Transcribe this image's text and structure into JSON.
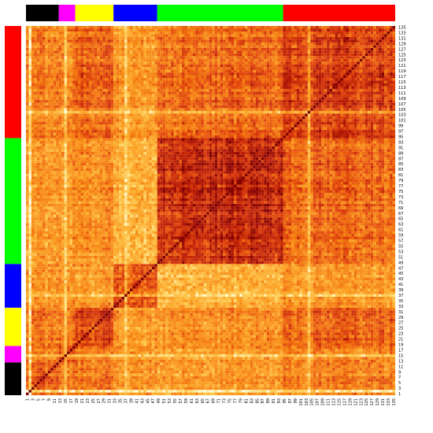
{
  "chart_data": {
    "type": "heatmap",
    "n": 135,
    "rows_bottom_to_top": true,
    "x_tick_labels": [
      "1",
      "3",
      "5",
      "7",
      "9",
      "11",
      "13",
      "15",
      "17",
      "19",
      "21",
      "23",
      "25",
      "27",
      "29",
      "31",
      "33",
      "35",
      "37",
      "39",
      "41",
      "43",
      "45",
      "47",
      "49",
      "51",
      "53",
      "55",
      "57",
      "59",
      "61",
      "63",
      "65",
      "67",
      "69",
      "71",
      "73",
      "75",
      "77",
      "79",
      "81",
      "83",
      "85",
      "87",
      "89",
      "91",
      "93",
      "95",
      "97",
      "99",
      "101",
      "103",
      "105",
      "107",
      "109",
      "111",
      "113",
      "115",
      "117",
      "119",
      "121",
      "123",
      "125",
      "127",
      "129",
      "131",
      "133",
      "135"
    ],
    "y_tick_labels": [
      "1",
      "3",
      "5",
      "7",
      "9",
      "11",
      "13",
      "15",
      "17",
      "19",
      "21",
      "23",
      "25",
      "27",
      "29",
      "31",
      "33",
      "35",
      "37",
      "39",
      "41",
      "43",
      "45",
      "47",
      "49",
      "51",
      "53",
      "55",
      "57",
      "59",
      "61",
      "63",
      "65",
      "67",
      "69",
      "71",
      "73",
      "75",
      "77",
      "79",
      "81",
      "83",
      "85",
      "87",
      "89",
      "91",
      "93",
      "95",
      "97",
      "99",
      "101",
      "103",
      "105",
      "107",
      "109",
      "111",
      "113",
      "115",
      "117",
      "119",
      "121",
      "123",
      "125",
      "127",
      "129",
      "131",
      "133",
      "135"
    ],
    "groups": [
      {
        "color": "#000000",
        "start": 1,
        "end": 12
      },
      {
        "color": "#ff00ff",
        "start": 13,
        "end": 18
      },
      {
        "color": "#ffff00",
        "start": 19,
        "end": 32
      },
      {
        "color": "#0000ff",
        "start": 33,
        "end": 48
      },
      {
        "color": "#00ff00",
        "start": 49,
        "end": 94
      },
      {
        "color": "#ff0000",
        "start": 95,
        "end": 135
      }
    ],
    "block_levels": [
      [
        0.62,
        0.5,
        0.55,
        0.42,
        0.4,
        0.5
      ],
      [
        0.5,
        0.6,
        0.52,
        0.42,
        0.4,
        0.48
      ],
      [
        0.55,
        0.52,
        0.72,
        0.4,
        0.45,
        0.6
      ],
      [
        0.42,
        0.42,
        0.4,
        0.62,
        0.3,
        0.4
      ],
      [
        0.4,
        0.4,
        0.45,
        0.3,
        0.82,
        0.58
      ],
      [
        0.5,
        0.48,
        0.6,
        0.4,
        0.58,
        0.72
      ]
    ],
    "color_scale": [
      "#7f0000",
      "#b81d08",
      "#e0440e",
      "#f47a12",
      "#fca628",
      "#fed25e",
      "#ffffe0"
    ]
  }
}
